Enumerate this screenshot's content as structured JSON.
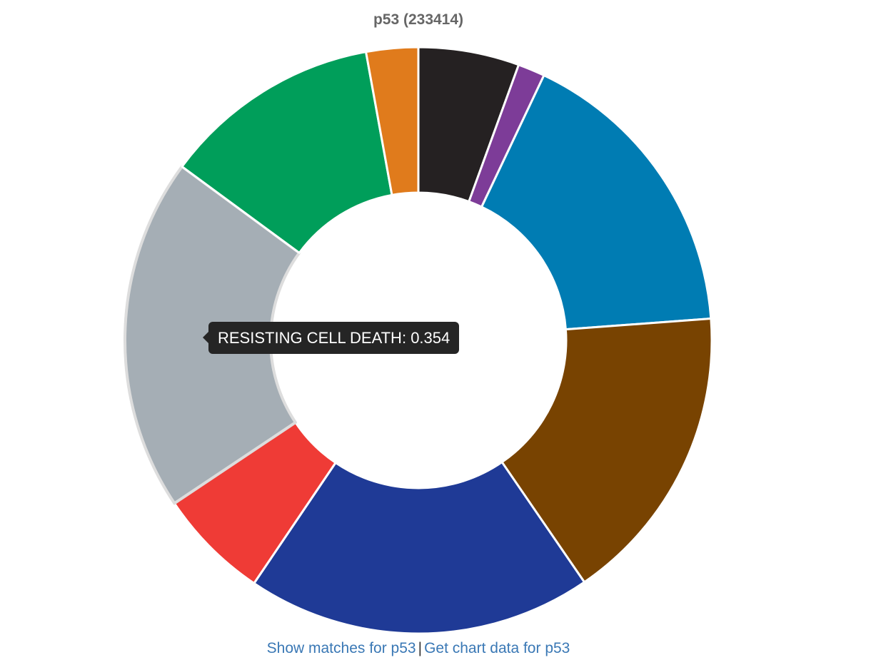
{
  "chart_data": {
    "type": "pie",
    "title": "p53 (233414)",
    "donut": true,
    "slices": [
      {
        "value": 0.101,
        "color": "#252122"
      },
      {
        "value": 0.027,
        "color": "#7d3c98"
      },
      {
        "value": 0.305,
        "color": "#007cb3"
      },
      {
        "value": 0.302,
        "color": "#784301"
      },
      {
        "value": 0.346,
        "color": "#1f3a96"
      },
      {
        "value": 0.112,
        "color": "#ef3b36"
      },
      {
        "value": 0.354,
        "color": "#a5aeb5",
        "label": "RESISTING CELL DEATH"
      },
      {
        "value": 0.219,
        "color": "#009e5a"
      },
      {
        "value": 0.052,
        "color": "#e07b1c"
      }
    ]
  },
  "tooltip": {
    "label": "RESISTING CELL DEATH",
    "separator": ": ",
    "value": "0.354"
  },
  "links": {
    "show_matches": "Show matches for p53",
    "separator": "|",
    "get_chart_data": "Get chart data for p53"
  }
}
